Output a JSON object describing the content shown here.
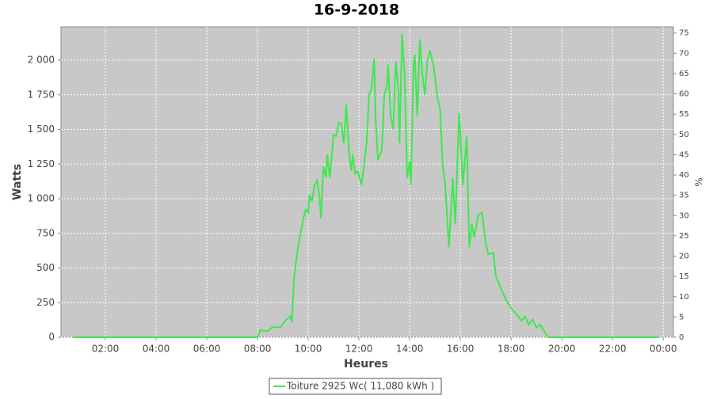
{
  "chart_data": {
    "type": "line",
    "title": "16-9-2018",
    "xlabel": "Heures",
    "ylabel": "Watts",
    "y2label": "%",
    "x": [
      0.75,
      8.0,
      8.1,
      8.4,
      8.6,
      8.9,
      9.1,
      9.3,
      9.35,
      9.45,
      9.6,
      9.8,
      9.9,
      10.0,
      10.05,
      10.15,
      10.25,
      10.35,
      10.45,
      10.5,
      10.6,
      10.7,
      10.75,
      10.85,
      11.0,
      11.1,
      11.2,
      11.3,
      11.4,
      11.5,
      11.6,
      11.7,
      11.75,
      11.85,
      11.95,
      12.1,
      12.2,
      12.3,
      12.4,
      12.5,
      12.6,
      12.65,
      12.75,
      12.9,
      13.0,
      13.1,
      13.15,
      13.25,
      13.35,
      13.45,
      13.55,
      13.6,
      13.7,
      13.8,
      13.9,
      14.0,
      14.05,
      14.15,
      14.2,
      14.3,
      14.4,
      14.5,
      14.6,
      14.7,
      14.8,
      14.95,
      15.1,
      15.2,
      15.3,
      15.4,
      15.55,
      15.7,
      15.8,
      15.95,
      16.1,
      16.25,
      16.35,
      16.45,
      16.55,
      16.7,
      16.85,
      17.0,
      17.1,
      17.3,
      17.4,
      17.6,
      17.8,
      18.0,
      18.2,
      18.4,
      18.55,
      18.7,
      18.85,
      19.0,
      19.15,
      19.35,
      19.45,
      23.8
    ],
    "series": [
      {
        "name": "Toiture 2925 Wc( 11,080 kWh )",
        "color": "#3ee84f",
        "values": [
          0,
          0,
          50,
          45,
          75,
          70,
          120,
          150,
          110,
          450,
          650,
          850,
          920,
          900,
          1030,
          980,
          1100,
          1130,
          1000,
          860,
          1230,
          1150,
          1320,
          1150,
          1460,
          1450,
          1550,
          1540,
          1400,
          1680,
          1350,
          1200,
          1320,
          1180,
          1200,
          1100,
          1240,
          1400,
          1750,
          1800,
          2010,
          1600,
          1280,
          1350,
          1750,
          1810,
          1970,
          1600,
          1500,
          1990,
          1800,
          1400,
          2190,
          1900,
          1150,
          1270,
          1100,
          1950,
          2040,
          1600,
          2150,
          1900,
          1750,
          2000,
          2070,
          1950,
          1720,
          1650,
          1250,
          1100,
          650,
          1150,
          820,
          1620,
          1100,
          1450,
          650,
          820,
          720,
          880,
          900,
          680,
          600,
          610,
          440,
          350,
          270,
          210,
          170,
          120,
          150,
          90,
          130,
          70,
          90,
          30,
          0,
          0
        ]
      }
    ],
    "xlim": [
      0.25,
      24.4
    ],
    "xticks": [
      {
        "value": 2,
        "label": "02:00"
      },
      {
        "value": 4,
        "label": "04:00"
      },
      {
        "value": 6,
        "label": "06:00"
      },
      {
        "value": 8,
        "label": "08:00"
      },
      {
        "value": 10,
        "label": "10:00"
      },
      {
        "value": 12,
        "label": "12:00"
      },
      {
        "value": 14,
        "label": "14:00"
      },
      {
        "value": 16,
        "label": "16:00"
      },
      {
        "value": 18,
        "label": "18:00"
      },
      {
        "value": 20,
        "label": "20:00"
      },
      {
        "value": 22,
        "label": "22:00"
      },
      {
        "value": 24,
        "label": "00:00"
      }
    ],
    "ylim": [
      0,
      2240
    ],
    "yticks": [
      0,
      250,
      500,
      750,
      {
        "value": 1000,
        "label": "1 000"
      },
      {
        "value": 1250,
        "label": "1 250"
      },
      {
        "value": 1500,
        "label": "1 500"
      },
      {
        "value": 1750,
        "label": "1 750"
      },
      {
        "value": 2000,
        "label": "2 000"
      }
    ],
    "y2lim": [
      0,
      76.5
    ],
    "y2ticks": [
      0,
      5,
      10,
      15,
      20,
      25,
      30,
      35,
      40,
      45,
      50,
      55,
      60,
      65,
      70,
      75
    ],
    "grid": true
  }
}
